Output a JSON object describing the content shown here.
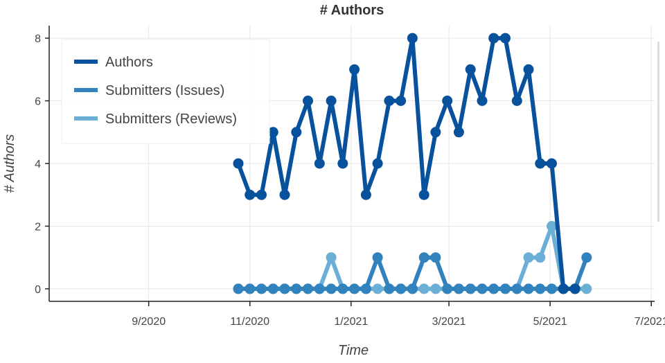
{
  "chart_data": {
    "type": "line",
    "title": "# Authors",
    "xlabel": "Time",
    "ylabel": "# Authors",
    "ylim": [
      -0.4,
      8.4
    ],
    "yticks": [
      0,
      2,
      4,
      6,
      8
    ],
    "xticks": [
      {
        "date": "2020-09-01",
        "label": "9/2020"
      },
      {
        "date": "2020-11-01",
        "label": "11/2020"
      },
      {
        "date": "2021-01-01",
        "label": "1/2021"
      },
      {
        "date": "2021-03-01",
        "label": "3/2021"
      },
      {
        "date": "2021-05-01",
        "label": "5/2021"
      },
      {
        "date": "2021-07-01",
        "label": "7/2021"
      }
    ],
    "xlim": [
      "2020-07-03",
      "2021-07-03"
    ],
    "grid": true,
    "legend": {
      "placement": "top-left"
    },
    "x": [
      "2020-10-25",
      "2020-11-01",
      "2020-11-08",
      "2020-11-15",
      "2020-11-22",
      "2020-11-29",
      "2020-12-06",
      "2020-12-13",
      "2020-12-20",
      "2020-12-27",
      "2021-01-03",
      "2021-01-10",
      "2021-01-17",
      "2021-01-24",
      "2021-01-31",
      "2021-02-07",
      "2021-02-14",
      "2021-02-21",
      "2021-02-28",
      "2021-03-07",
      "2021-03-14",
      "2021-03-21",
      "2021-03-28",
      "2021-04-04",
      "2021-04-11",
      "2021-04-18",
      "2021-04-25",
      "2021-05-02",
      "2021-05-09",
      "2021-05-16",
      "2021-05-23"
    ],
    "series": [
      {
        "name": "Submitters (Reviews)",
        "color": "#6baed6",
        "values": [
          0,
          0,
          0,
          0,
          0,
          0,
          0,
          0,
          1,
          0,
          0,
          0,
          0,
          0,
          0,
          0,
          0,
          0,
          0,
          0,
          0,
          0,
          0,
          0,
          0,
          1,
          1,
          2,
          0,
          0,
          0
        ]
      },
      {
        "name": "Submitters (Issues)",
        "color": "#3182bd",
        "values": [
          0,
          0,
          0,
          0,
          0,
          0,
          0,
          0,
          0,
          0,
          0,
          0,
          1,
          0,
          0,
          0,
          1,
          1,
          0,
          0,
          0,
          0,
          0,
          0,
          0,
          0,
          0,
          0,
          0,
          0,
          1
        ]
      },
      {
        "name": "Authors",
        "color": "#08519c",
        "values": [
          4,
          3,
          3,
          5,
          3,
          5,
          6,
          4,
          6,
          4,
          7,
          3,
          4,
          6,
          6,
          8,
          3,
          5,
          6,
          5,
          7,
          6,
          8,
          8,
          6,
          7,
          4,
          4,
          0,
          0,
          null
        ]
      }
    ],
    "legend_order": [
      "Authors",
      "Submitters (Issues)",
      "Submitters (Reviews)"
    ]
  }
}
